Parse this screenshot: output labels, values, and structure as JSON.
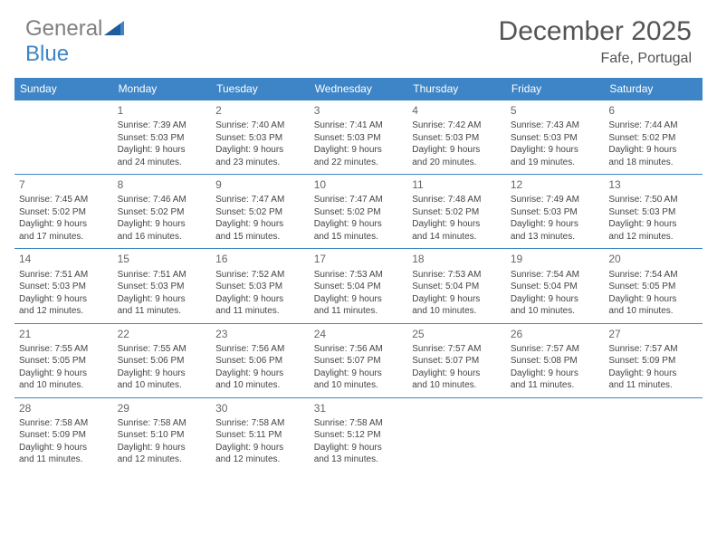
{
  "brand": {
    "name_gray": "General",
    "name_blue": "Blue"
  },
  "title": "December 2025",
  "location": "Fafe, Portugal",
  "colors": {
    "header_bg": "#3d85c6",
    "header_text": "#ffffff",
    "cell_border": "#3d85c6",
    "daynum_color": "#666666",
    "body_text": "#444444",
    "logo_gray": "#808080",
    "logo_blue": "#3d85c6",
    "background": "#ffffff"
  },
  "day_headers": [
    "Sunday",
    "Monday",
    "Tuesday",
    "Wednesday",
    "Thursday",
    "Friday",
    "Saturday"
  ],
  "weeks": [
    [
      null,
      {
        "n": "1",
        "sr": "Sunrise: 7:39 AM",
        "ss": "Sunset: 5:03 PM",
        "dl1": "Daylight: 9 hours",
        "dl2": "and 24 minutes."
      },
      {
        "n": "2",
        "sr": "Sunrise: 7:40 AM",
        "ss": "Sunset: 5:03 PM",
        "dl1": "Daylight: 9 hours",
        "dl2": "and 23 minutes."
      },
      {
        "n": "3",
        "sr": "Sunrise: 7:41 AM",
        "ss": "Sunset: 5:03 PM",
        "dl1": "Daylight: 9 hours",
        "dl2": "and 22 minutes."
      },
      {
        "n": "4",
        "sr": "Sunrise: 7:42 AM",
        "ss": "Sunset: 5:03 PM",
        "dl1": "Daylight: 9 hours",
        "dl2": "and 20 minutes."
      },
      {
        "n": "5",
        "sr": "Sunrise: 7:43 AM",
        "ss": "Sunset: 5:03 PM",
        "dl1": "Daylight: 9 hours",
        "dl2": "and 19 minutes."
      },
      {
        "n": "6",
        "sr": "Sunrise: 7:44 AM",
        "ss": "Sunset: 5:02 PM",
        "dl1": "Daylight: 9 hours",
        "dl2": "and 18 minutes."
      }
    ],
    [
      {
        "n": "7",
        "sr": "Sunrise: 7:45 AM",
        "ss": "Sunset: 5:02 PM",
        "dl1": "Daylight: 9 hours",
        "dl2": "and 17 minutes."
      },
      {
        "n": "8",
        "sr": "Sunrise: 7:46 AM",
        "ss": "Sunset: 5:02 PM",
        "dl1": "Daylight: 9 hours",
        "dl2": "and 16 minutes."
      },
      {
        "n": "9",
        "sr": "Sunrise: 7:47 AM",
        "ss": "Sunset: 5:02 PM",
        "dl1": "Daylight: 9 hours",
        "dl2": "and 15 minutes."
      },
      {
        "n": "10",
        "sr": "Sunrise: 7:47 AM",
        "ss": "Sunset: 5:02 PM",
        "dl1": "Daylight: 9 hours",
        "dl2": "and 15 minutes."
      },
      {
        "n": "11",
        "sr": "Sunrise: 7:48 AM",
        "ss": "Sunset: 5:02 PM",
        "dl1": "Daylight: 9 hours",
        "dl2": "and 14 minutes."
      },
      {
        "n": "12",
        "sr": "Sunrise: 7:49 AM",
        "ss": "Sunset: 5:03 PM",
        "dl1": "Daylight: 9 hours",
        "dl2": "and 13 minutes."
      },
      {
        "n": "13",
        "sr": "Sunrise: 7:50 AM",
        "ss": "Sunset: 5:03 PM",
        "dl1": "Daylight: 9 hours",
        "dl2": "and 12 minutes."
      }
    ],
    [
      {
        "n": "14",
        "sr": "Sunrise: 7:51 AM",
        "ss": "Sunset: 5:03 PM",
        "dl1": "Daylight: 9 hours",
        "dl2": "and 12 minutes."
      },
      {
        "n": "15",
        "sr": "Sunrise: 7:51 AM",
        "ss": "Sunset: 5:03 PM",
        "dl1": "Daylight: 9 hours",
        "dl2": "and 11 minutes."
      },
      {
        "n": "16",
        "sr": "Sunrise: 7:52 AM",
        "ss": "Sunset: 5:03 PM",
        "dl1": "Daylight: 9 hours",
        "dl2": "and 11 minutes."
      },
      {
        "n": "17",
        "sr": "Sunrise: 7:53 AM",
        "ss": "Sunset: 5:04 PM",
        "dl1": "Daylight: 9 hours",
        "dl2": "and 11 minutes."
      },
      {
        "n": "18",
        "sr": "Sunrise: 7:53 AM",
        "ss": "Sunset: 5:04 PM",
        "dl1": "Daylight: 9 hours",
        "dl2": "and 10 minutes."
      },
      {
        "n": "19",
        "sr": "Sunrise: 7:54 AM",
        "ss": "Sunset: 5:04 PM",
        "dl1": "Daylight: 9 hours",
        "dl2": "and 10 minutes."
      },
      {
        "n": "20",
        "sr": "Sunrise: 7:54 AM",
        "ss": "Sunset: 5:05 PM",
        "dl1": "Daylight: 9 hours",
        "dl2": "and 10 minutes."
      }
    ],
    [
      {
        "n": "21",
        "sr": "Sunrise: 7:55 AM",
        "ss": "Sunset: 5:05 PM",
        "dl1": "Daylight: 9 hours",
        "dl2": "and 10 minutes."
      },
      {
        "n": "22",
        "sr": "Sunrise: 7:55 AM",
        "ss": "Sunset: 5:06 PM",
        "dl1": "Daylight: 9 hours",
        "dl2": "and 10 minutes."
      },
      {
        "n": "23",
        "sr": "Sunrise: 7:56 AM",
        "ss": "Sunset: 5:06 PM",
        "dl1": "Daylight: 9 hours",
        "dl2": "and 10 minutes."
      },
      {
        "n": "24",
        "sr": "Sunrise: 7:56 AM",
        "ss": "Sunset: 5:07 PM",
        "dl1": "Daylight: 9 hours",
        "dl2": "and 10 minutes."
      },
      {
        "n": "25",
        "sr": "Sunrise: 7:57 AM",
        "ss": "Sunset: 5:07 PM",
        "dl1": "Daylight: 9 hours",
        "dl2": "and 10 minutes."
      },
      {
        "n": "26",
        "sr": "Sunrise: 7:57 AM",
        "ss": "Sunset: 5:08 PM",
        "dl1": "Daylight: 9 hours",
        "dl2": "and 11 minutes."
      },
      {
        "n": "27",
        "sr": "Sunrise: 7:57 AM",
        "ss": "Sunset: 5:09 PM",
        "dl1": "Daylight: 9 hours",
        "dl2": "and 11 minutes."
      }
    ],
    [
      {
        "n": "28",
        "sr": "Sunrise: 7:58 AM",
        "ss": "Sunset: 5:09 PM",
        "dl1": "Daylight: 9 hours",
        "dl2": "and 11 minutes."
      },
      {
        "n": "29",
        "sr": "Sunrise: 7:58 AM",
        "ss": "Sunset: 5:10 PM",
        "dl1": "Daylight: 9 hours",
        "dl2": "and 12 minutes."
      },
      {
        "n": "30",
        "sr": "Sunrise: 7:58 AM",
        "ss": "Sunset: 5:11 PM",
        "dl1": "Daylight: 9 hours",
        "dl2": "and 12 minutes."
      },
      {
        "n": "31",
        "sr": "Sunrise: 7:58 AM",
        "ss": "Sunset: 5:12 PM",
        "dl1": "Daylight: 9 hours",
        "dl2": "and 13 minutes."
      },
      null,
      null,
      null
    ]
  ]
}
